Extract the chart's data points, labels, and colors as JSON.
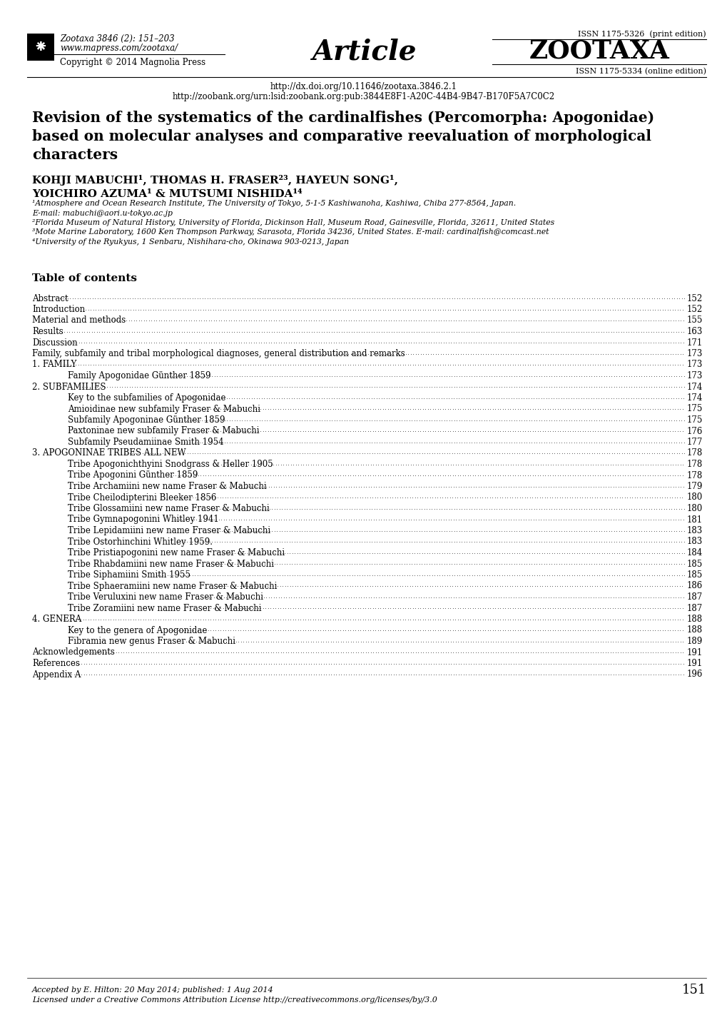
{
  "background_color": "#ffffff",
  "header": {
    "left_text_line1": "Zootaxa 3846 (2): 151–203",
    "left_text_line2": "www.mapress.com/zootaxa/",
    "left_text_line3": "Copyright © 2014 Magnolia Press",
    "center_text": "Article",
    "right_text_line1": "ISSN 1175-5326  (print edition)",
    "right_text_line2": "ZOOTAXA",
    "right_text_line3": "ISSN 1175-5334 (online edition)"
  },
  "doi_lines": [
    "http://dx.doi.org/10.11646/zootaxa.3846.2.1",
    "http://zoobank.org/urn:lsid:zoobank.org:pub:3844E8F1-A20C-44B4-9B47-B170F5A7C0C2"
  ],
  "title_lines": [
    "Revision of the systematics of the cardinalfishes (Percomorpha: Apogonidae)",
    "based on molecular analyses and comparative reevaluation of morphological",
    "characters"
  ],
  "authors_line1": "KOHJI MABUCHI¹, THOMAS H. FRASER²³, HAYEUN SONG¹,",
  "authors_line2": "YOICHIRO AZUMA¹ & MUTSUMI NISHIDA¹⁴",
  "affiliations": [
    "¹Atmosphere and Ocean Research Institute, The University of Tokyo, 5-1-5 Kashiwanoha, Kashiwa, Chiba 277-8564, Japan.",
    "E-mail: mabuchi@aori.u-tokyo.ac.jp",
    "²Florida Museum of Natural History, University of Florida, Dickinson Hall, Museum Road, Gainesville, Florida, 32611, United States",
    "³Mote Marine Laboratory, 1600 Ken Thompson Parkway, Sarasota, Florida 34236, United States. E-mail: cardinalfish@comcast.net",
    "⁴University of the Ryukyus, 1 Senbaru, Nishihara-cho, Okinawa 903-0213, Japan"
  ],
  "toc_title": "Table of contents",
  "toc_entries": [
    [
      "Abstract",
      "152",
      0
    ],
    [
      "Introduction",
      "152",
      0
    ],
    [
      "Material and methods",
      "155",
      0
    ],
    [
      "Results",
      "163",
      0
    ],
    [
      "Discussion",
      "171",
      0
    ],
    [
      "Family, subfamily and tribal morphological diagnoses, general distribution and remarks",
      "173",
      0
    ],
    [
      "1. FAMILY",
      "173",
      0
    ],
    [
      "Family Apogonidae Günther 1859",
      "173",
      1
    ],
    [
      "2. SUBFAMILIES",
      "174",
      0
    ],
    [
      "Key to the subfamilies of Apogonidae",
      "174",
      1
    ],
    [
      "Amioidinae new subfamily Fraser & Mabuchi",
      "175",
      1
    ],
    [
      "Subfamily Apogoninae Günther 1859",
      "175",
      1
    ],
    [
      "Paxtoninae new subfamily Fraser & Mabuchi",
      "176",
      1
    ],
    [
      "Subfamily Pseudamiinae Smith 1954",
      "177",
      1
    ],
    [
      "3. APOGONINAE TRIBES ALL NEW",
      "178",
      0
    ],
    [
      "Tribe Apogonichthyini Snodgrass & Heller 1905",
      "178",
      1
    ],
    [
      "Tribe Apogonini Günther 1859",
      "178",
      1
    ],
    [
      "Tribe Archamiini new name Fraser & Mabuchi",
      "179",
      1
    ],
    [
      "Tribe Cheilodipterini Bleeker 1856",
      "180",
      1
    ],
    [
      "Tribe Glossamiini new name Fraser & Mabuchi",
      "180",
      1
    ],
    [
      "Tribe Gymnapogonini Whitley 1941",
      "181",
      1
    ],
    [
      "Tribe Lepidamiini new name Fraser & Mabuchi",
      "183",
      1
    ],
    [
      "Tribe Ostorhinchini Whitley 1959.",
      "183",
      1
    ],
    [
      "Tribe Pristiapogonini new name Fraser & Mabuchi",
      "184",
      1
    ],
    [
      "Tribe Rhabdamiini new name Fraser & Mabuchi",
      "185",
      1
    ],
    [
      "Tribe Siphamiini Smith 1955",
      "185",
      1
    ],
    [
      "Tribe Sphaeramiini new name Fraser & Mabuchi",
      "186",
      1
    ],
    [
      "Tribe Veruluxini new name Fraser & Mabuchi",
      "187",
      1
    ],
    [
      "Tribe Zoramiini new name Fraser & Mabuchi",
      "187",
      1
    ],
    [
      "4. GENERA",
      "188",
      0
    ],
    [
      "Key to the genera of Apogonidae",
      "188",
      1
    ],
    [
      "Fibramia new genus Fraser & Mabuchi",
      "189",
      1
    ],
    [
      "Acknowledgements",
      "191",
      0
    ],
    [
      "References",
      "191",
      0
    ],
    [
      "Appendix A",
      "196",
      0
    ]
  ],
  "footer_line1": "Accepted by E. Hilton: 20 May 2014; published: 1 Aug 2014",
  "footer_page": "151",
  "footer_line2": "Licensed under a Creative Commons Attribution License http://creativecommons.org/licenses/by/3.0"
}
